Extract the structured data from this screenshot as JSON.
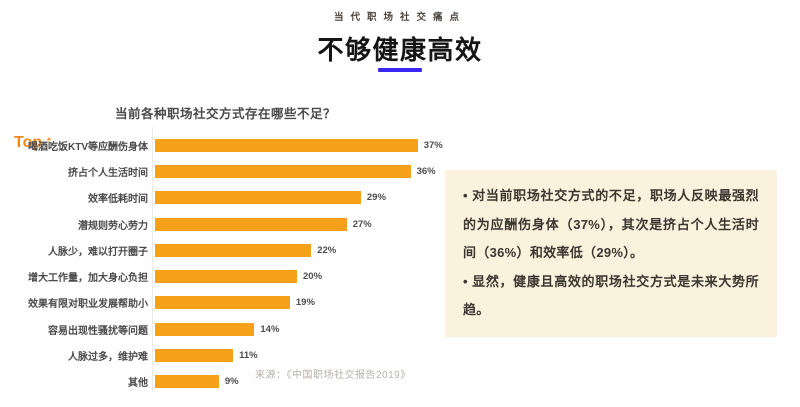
{
  "header": {
    "eyebrow": "当代职场社交痛点",
    "title": "不够健康高效",
    "underline_color": "#3a28f2"
  },
  "chart": {
    "title": "当前各种职场社交方式存在哪些不足？",
    "top_label": "Top",
    "top_arrow_icon": "↑",
    "top_color": "#f58617",
    "bar_color": "#f7a11b",
    "source": "来源：《中国职场社交报告2019》"
  },
  "chart_data": {
    "type": "bar",
    "orientation": "horizontal",
    "title": "当前各种职场社交方式存在哪些不足？",
    "categories": [
      "喝酒吃饭KTV等应酬伤身体",
      "挤占个人生活时间",
      "效率低耗时间",
      "潜规则劳心劳力",
      "人脉少，难以打开圈子",
      "增大工作量，加大身心负担",
      "效果有限对职业发展帮助小",
      "容易出现性骚扰等问题",
      "人脉过多，维护难",
      "其他"
    ],
    "values": [
      37,
      36,
      29,
      27,
      22,
      20,
      19,
      14,
      11,
      9
    ],
    "value_suffix": "%",
    "xlim": [
      0,
      40
    ],
    "grid": false,
    "legend": false,
    "sort": "descending",
    "source": "来源：《中国职场社交报告2019》"
  },
  "insight_panel": {
    "background": "#fbf2de",
    "bullet_glyph": "•",
    "bullets": [
      "对当前职场社交方式的不足，职场人反映最强烈的为应酬伤身体（37%），其次是挤占个人生活时间（36%）和效率低（29%）。",
      "显然，健康且高效的职场社交方式是未来大势所趋。"
    ]
  }
}
